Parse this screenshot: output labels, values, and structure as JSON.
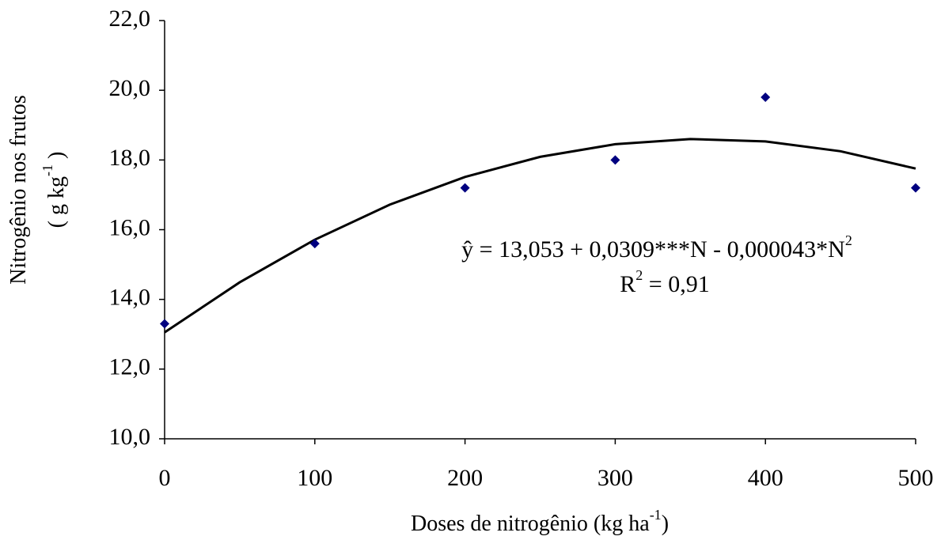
{
  "chart_data": {
    "type": "scatter",
    "x_label": [
      "Doses de nitrogênio (kg ha",
      "-1",
      ")"
    ],
    "y_label": [
      "Nitrogênio nos frutos",
      "( g kg",
      "-1",
      " )"
    ],
    "equation": [
      "ŷ = 13,053 + 0,0309***N - 0,000043*N",
      "2"
    ],
    "r_squared": [
      "R",
      "2",
      " = 0,91"
    ],
    "xlim": [
      0,
      500
    ],
    "xticks": [
      0,
      100,
      200,
      300,
      400,
      500
    ],
    "ylim": [
      10,
      22
    ],
    "yticks": [
      {
        "value": 10,
        "label": "10,0"
      },
      {
        "value": 12,
        "label": "12,0"
      },
      {
        "value": 14,
        "label": "14,0"
      },
      {
        "value": 16,
        "label": "16,0"
      },
      {
        "value": 18,
        "label": "18,0"
      },
      {
        "value": 20,
        "label": "20,0"
      },
      {
        "value": 22,
        "label": "22,0"
      }
    ],
    "points": {
      "color": "#000080",
      "x": [
        0,
        100,
        200,
        300,
        400,
        500
      ],
      "values": [
        13.3,
        15.6,
        17.2,
        18.0,
        19.8,
        17.2
      ]
    },
    "fit": {
      "color": "#000000",
      "x": [
        0,
        50,
        100,
        150,
        200,
        250,
        300,
        350,
        400,
        450,
        500
      ],
      "values": [
        13.053,
        14.49,
        15.713,
        16.72,
        17.513,
        18.09,
        18.453,
        18.6,
        18.533,
        18.25,
        17.753
      ]
    }
  }
}
